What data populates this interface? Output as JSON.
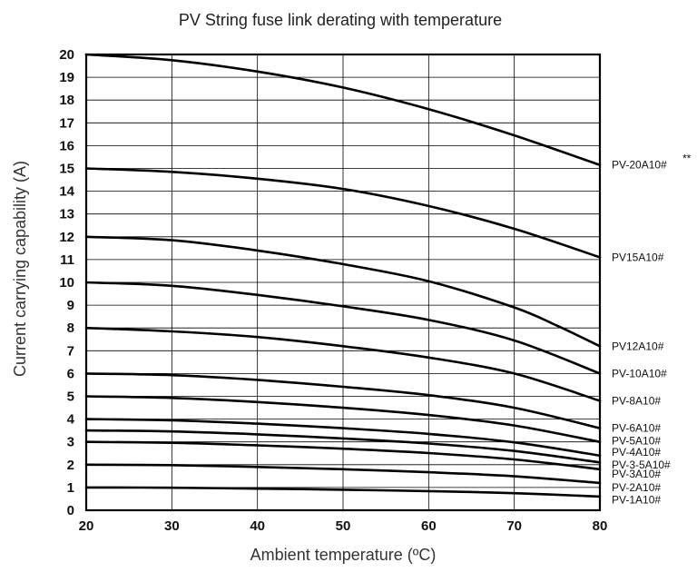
{
  "chart_data": {
    "type": "line",
    "title": "PV String fuse link derating with temperature",
    "xlabel": "Ambient temperature (ºC)",
    "ylabel": "Current carrying capability (A)",
    "xlim": [
      20,
      80
    ],
    "ylim": [
      0,
      20
    ],
    "x_ticks": [
      20,
      30,
      40,
      50,
      60,
      70,
      80
    ],
    "y_ticks": [
      0,
      1,
      2,
      3,
      4,
      5,
      6,
      7,
      8,
      9,
      10,
      11,
      12,
      13,
      14,
      15,
      16,
      17,
      18,
      19,
      20
    ],
    "grid": true,
    "legend": "labels at right end of each line",
    "series": [
      {
        "name": "PV-20A10#",
        "note": "**",
        "x": [
          20,
          30,
          40,
          50,
          60,
          70,
          80
        ],
        "y": [
          20.0,
          19.75,
          19.25,
          18.55,
          17.6,
          16.45,
          15.15
        ]
      },
      {
        "name": "PV15A10#",
        "x": [
          20,
          30,
          40,
          50,
          60,
          70,
          80
        ],
        "y": [
          15.0,
          14.85,
          14.55,
          14.1,
          13.35,
          12.35,
          11.1
        ]
      },
      {
        "name": "PV12A10#",
        "x": [
          20,
          30,
          40,
          50,
          60,
          70,
          75,
          80
        ],
        "y": [
          12.0,
          11.85,
          11.4,
          10.8,
          10.05,
          8.9,
          8.1,
          7.2
        ]
      },
      {
        "name": "PV-10A10#",
        "x": [
          20,
          30,
          40,
          50,
          60,
          70,
          80
        ],
        "y": [
          10.0,
          9.85,
          9.45,
          8.95,
          8.35,
          7.45,
          6.0
        ]
      },
      {
        "name": "PV-8A10#",
        "x": [
          20,
          30,
          40,
          50,
          60,
          70,
          80
        ],
        "y": [
          8.0,
          7.85,
          7.6,
          7.2,
          6.7,
          6.0,
          4.8
        ]
      },
      {
        "name": "PV-6A10#",
        "x": [
          20,
          30,
          40,
          50,
          60,
          70,
          80
        ],
        "y": [
          6.0,
          5.93,
          5.72,
          5.42,
          5.05,
          4.5,
          3.6
        ]
      },
      {
        "name": "PV-5A10#",
        "x": [
          20,
          30,
          40,
          50,
          60,
          70,
          80
        ],
        "y": [
          5.0,
          4.93,
          4.75,
          4.5,
          4.18,
          3.72,
          3.0
        ]
      },
      {
        "name": "PV-4A10#",
        "x": [
          20,
          30,
          40,
          50,
          60,
          70,
          80
        ],
        "y": [
          4.0,
          3.95,
          3.8,
          3.6,
          3.35,
          2.98,
          2.4
        ]
      },
      {
        "name": "PV-3-5A10#",
        "x": [
          20,
          30,
          40,
          50,
          60,
          70,
          80
        ],
        "y": [
          3.5,
          3.46,
          3.33,
          3.15,
          2.93,
          2.6,
          2.1
        ]
      },
      {
        "name": "PV-3A10#",
        "x": [
          20,
          30,
          40,
          50,
          60,
          70,
          80
        ],
        "y": [
          3.0,
          2.96,
          2.85,
          2.7,
          2.51,
          2.23,
          1.8
        ]
      },
      {
        "name": "PV-2A10#",
        "x": [
          20,
          30,
          40,
          50,
          60,
          70,
          80
        ],
        "y": [
          2.0,
          1.98,
          1.9,
          1.8,
          1.67,
          1.49,
          1.2
        ]
      },
      {
        "name": "PV-1A10#",
        "x": [
          20,
          30,
          40,
          50,
          60,
          70,
          80
        ],
        "y": [
          1.0,
          0.99,
          0.95,
          0.9,
          0.84,
          0.75,
          0.6
        ]
      }
    ]
  }
}
